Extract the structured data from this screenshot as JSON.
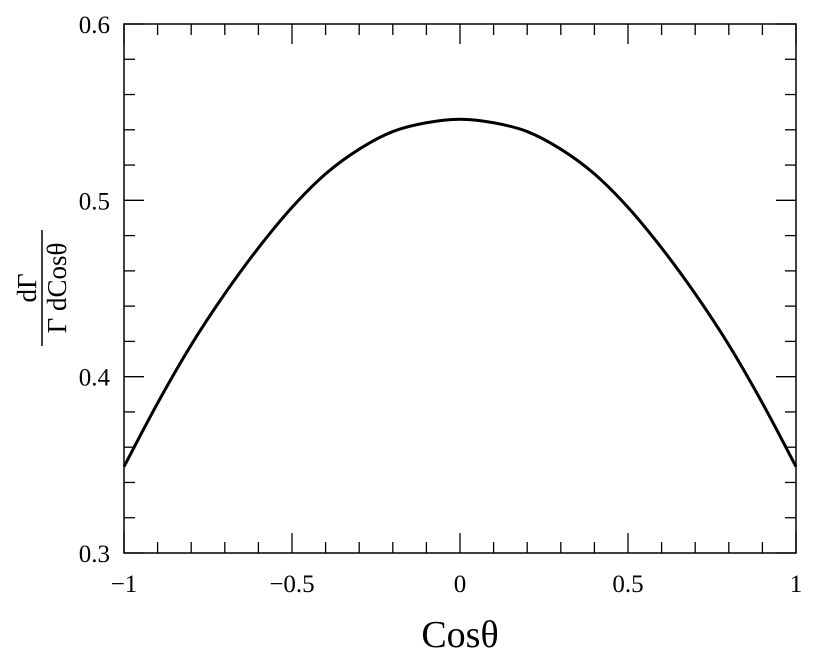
{
  "chart_data": {
    "type": "line",
    "title": "",
    "xlabel": "Cosθ",
    "ylabel": {
      "numerator": "dΓ",
      "denominator": "Γ dCosθ"
    },
    "xlim": [
      -1,
      1
    ],
    "ylim": [
      0.3,
      0.6
    ],
    "x_ticks": [
      "−1",
      "−0.5",
      "0",
      "0.5",
      "1"
    ],
    "y_ticks": [
      "0.3",
      "0.4",
      "0.5",
      "0.6"
    ],
    "grid": false,
    "legend": "none",
    "series": [
      {
        "color": "#000000",
        "x": [
          -1.0,
          -0.9,
          -0.8,
          -0.7,
          -0.6,
          -0.5,
          -0.4,
          -0.3,
          -0.2,
          -0.1,
          0.0,
          0.1,
          0.2,
          0.3,
          0.4,
          0.5,
          0.6,
          0.7,
          0.8,
          0.9,
          1.0
        ],
        "y": [
          0.349,
          0.385,
          0.418,
          0.447,
          0.473,
          0.496,
          0.515,
          0.529,
          0.539,
          0.544,
          0.546,
          0.544,
          0.539,
          0.529,
          0.515,
          0.496,
          0.473,
          0.447,
          0.418,
          0.385,
          0.349
        ]
      }
    ]
  }
}
